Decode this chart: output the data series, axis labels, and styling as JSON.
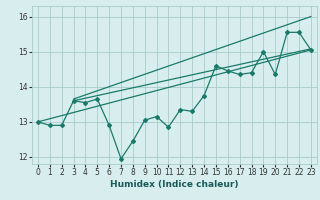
{
  "title": "",
  "xlabel": "Humidex (Indice chaleur)",
  "ylabel": "",
  "bg_color": "#d8eeee",
  "grid_color": "#a8cccc",
  "line_color": "#1a7a6a",
  "xlim": [
    -0.5,
    23.5
  ],
  "ylim": [
    11.8,
    16.3
  ],
  "yticks": [
    12,
    13,
    14,
    15,
    16
  ],
  "xticks": [
    0,
    1,
    2,
    3,
    4,
    5,
    6,
    7,
    8,
    9,
    10,
    11,
    12,
    13,
    14,
    15,
    16,
    17,
    18,
    19,
    20,
    21,
    22,
    23
  ],
  "zigzag_x": [
    0,
    1,
    2,
    3,
    4,
    5,
    6,
    7,
    8,
    9,
    10,
    11,
    12,
    13,
    14,
    15,
    16,
    17,
    18,
    19,
    20,
    21,
    22,
    23
  ],
  "zigzag_y": [
    13.0,
    12.9,
    12.9,
    13.6,
    13.55,
    13.65,
    12.9,
    11.95,
    12.45,
    13.05,
    13.15,
    12.85,
    13.35,
    13.3,
    13.75,
    14.6,
    14.45,
    14.35,
    14.4,
    15.0,
    14.35,
    15.55,
    15.55,
    15.05
  ],
  "line1_x": [
    0,
    23
  ],
  "line1_y": [
    13.0,
    15.05
  ],
  "line2_x": [
    3,
    23
  ],
  "line2_y": [
    13.6,
    15.08
  ],
  "line3_x": [
    3,
    23
  ],
  "line3_y": [
    13.65,
    16.0
  ]
}
